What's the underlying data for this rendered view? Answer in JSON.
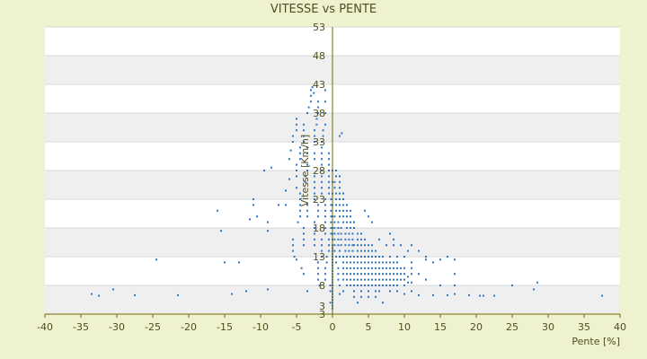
{
  "chart_data": {
    "type": "scatter",
    "title": "VITESSE vs PENTE",
    "xlabel": "Pente [%]",
    "ylabel": "Vitesse [Km/h]",
    "xlim": [
      -40,
      40
    ],
    "ylim": [
      3,
      53
    ],
    "x_ticks": [
      "-40",
      "-35",
      "-30",
      "-25",
      "-20",
      "-15",
      "-10",
      "-5",
      "0",
      "5",
      "10",
      "15",
      "20",
      "25",
      "30",
      "35",
      "40"
    ],
    "y_ticks": [
      "3",
      "3",
      "8",
      "13",
      "18",
      "23",
      "28",
      "33",
      "38",
      "43",
      "48",
      "53"
    ],
    "grid": true,
    "legend": "none",
    "colors": {
      "point": "#2e75c4",
      "axis": "#6b6b00",
      "band_dark": "#efefef",
      "band_light": "#ffffff",
      "background": "#eef2cf"
    },
    "points": [
      [
        -33.5,
        6.5
      ],
      [
        -32.5,
        6.2
      ],
      [
        -30.5,
        7.3
      ],
      [
        -27.5,
        6.3
      ],
      [
        -24.5,
        12.5
      ],
      [
        -21.5,
        6.3
      ],
      [
        -16,
        21
      ],
      [
        -15.5,
        17.5
      ],
      [
        -15,
        12
      ],
      [
        -14,
        6.5
      ],
      [
        -13,
        12
      ],
      [
        -12,
        7
      ],
      [
        -11.5,
        19.5
      ],
      [
        -11,
        22
      ],
      [
        -11,
        23
      ],
      [
        -10.5,
        20
      ],
      [
        -9.5,
        28
      ],
      [
        -9,
        7.3
      ],
      [
        -9,
        19
      ],
      [
        -9,
        17.5
      ],
      [
        -8.5,
        28.5
      ],
      [
        -7.5,
        22
      ],
      [
        -6.5,
        22
      ],
      [
        -6.5,
        24.5
      ],
      [
        -6,
        30
      ],
      [
        -6,
        26.5
      ],
      [
        -5.8,
        31.5
      ],
      [
        -5.5,
        33
      ],
      [
        -5.5,
        34
      ],
      [
        -5.5,
        14
      ],
      [
        -5.5,
        15
      ],
      [
        -5.5,
        16
      ],
      [
        -5.3,
        13
      ],
      [
        -5,
        12.5
      ],
      [
        -5,
        35
      ],
      [
        -5,
        36
      ],
      [
        -5,
        37
      ],
      [
        -5,
        25
      ],
      [
        -5,
        27
      ],
      [
        -5,
        28
      ],
      [
        -5,
        29
      ],
      [
        -4.8,
        19
      ],
      [
        -4.5,
        20
      ],
      [
        -4.5,
        21
      ],
      [
        -4.5,
        22
      ],
      [
        -4.5,
        23
      ],
      [
        -4.5,
        24
      ],
      [
        -4.5,
        30
      ],
      [
        -4.5,
        31
      ],
      [
        -4.5,
        32
      ],
      [
        -4.3,
        11
      ],
      [
        -4,
        10
      ],
      [
        -4,
        15
      ],
      [
        -4,
        16
      ],
      [
        -4,
        17
      ],
      [
        -4,
        18
      ],
      [
        -4,
        33
      ],
      [
        -4,
        34
      ],
      [
        -4,
        35
      ],
      [
        -4,
        36
      ],
      [
        -3.8,
        26
      ],
      [
        -3.8,
        27
      ],
      [
        -3.5,
        7
      ],
      [
        -3.5,
        20
      ],
      [
        -3.5,
        21
      ],
      [
        -3.5,
        22
      ],
      [
        -3.5,
        28
      ],
      [
        -3.5,
        29
      ],
      [
        -3.5,
        31
      ],
      [
        -3.5,
        32
      ],
      [
        -3.5,
        38
      ],
      [
        -3.3,
        39
      ],
      [
        -3,
        40
      ],
      [
        -3,
        41
      ],
      [
        -3,
        42
      ],
      [
        -2.8,
        42.5
      ],
      [
        -2.6,
        41.5
      ],
      [
        -2.5,
        15
      ],
      [
        -2.5,
        16
      ],
      [
        -2.5,
        17
      ],
      [
        -2.5,
        18
      ],
      [
        -2.5,
        19
      ],
      [
        -2.5,
        23
      ],
      [
        -2.5,
        24
      ],
      [
        -2.5,
        25
      ],
      [
        -2.5,
        26
      ],
      [
        -2.5,
        27
      ],
      [
        -2.5,
        30
      ],
      [
        -2.5,
        31
      ],
      [
        -2.5,
        33
      ],
      [
        -2.5,
        34
      ],
      [
        -2.5,
        35
      ],
      [
        -2.2,
        36
      ],
      [
        -2.2,
        37
      ],
      [
        -2,
        9
      ],
      [
        -2,
        10
      ],
      [
        -2,
        11
      ],
      [
        -2,
        12
      ],
      [
        -2,
        20
      ],
      [
        -2,
        21
      ],
      [
        -2,
        22
      ],
      [
        -2,
        38
      ],
      [
        -2,
        39
      ],
      [
        -2,
        40
      ],
      [
        -1.8,
        8
      ],
      [
        -1.5,
        13
      ],
      [
        -1.5,
        14
      ],
      [
        -1.5,
        15
      ],
      [
        -1.5,
        16
      ],
      [
        -1.5,
        24
      ],
      [
        -1.5,
        25
      ],
      [
        -1.5,
        26
      ],
      [
        -1.5,
        27
      ],
      [
        -1.5,
        28
      ],
      [
        -1.5,
        29
      ],
      [
        -1.5,
        30
      ],
      [
        -1.5,
        31
      ],
      [
        -1.5,
        32
      ],
      [
        -1.5,
        33
      ],
      [
        -1.3,
        34
      ],
      [
        -1.3,
        35
      ],
      [
        -1,
        9
      ],
      [
        -1,
        10
      ],
      [
        -1,
        11
      ],
      [
        -1,
        17
      ],
      [
        -1,
        18
      ],
      [
        -1,
        19
      ],
      [
        -1,
        20
      ],
      [
        -1,
        21
      ],
      [
        -1,
        22
      ],
      [
        -1,
        23
      ],
      [
        -1,
        36
      ],
      [
        -1,
        38
      ],
      [
        -1,
        40
      ],
      [
        -1,
        42
      ],
      [
        -0.8,
        12
      ],
      [
        -0.8,
        13
      ],
      [
        -0.5,
        14
      ],
      [
        -0.5,
        15
      ],
      [
        -0.5,
        16
      ],
      [
        -0.5,
        24
      ],
      [
        -0.5,
        25
      ],
      [
        -0.5,
        26
      ],
      [
        -0.5,
        27
      ],
      [
        -0.5,
        28
      ],
      [
        -0.5,
        29
      ],
      [
        -0.5,
        30
      ],
      [
        -0.5,
        31
      ],
      [
        -0.3,
        5
      ],
      [
        -0.3,
        7
      ],
      [
        -0.3,
        8
      ],
      [
        -0.2,
        17
      ],
      [
        -0.2,
        18
      ],
      [
        -0.2,
        19
      ],
      [
        -0.2,
        20
      ],
      [
        -0.2,
        21
      ],
      [
        -0.2,
        22
      ],
      [
        -0.2,
        23
      ],
      [
        0,
        4
      ],
      [
        0,
        4.5
      ],
      [
        0,
        5
      ],
      [
        0,
        5.5
      ],
      [
        0,
        6
      ],
      [
        0,
        6.5
      ],
      [
        0,
        7
      ],
      [
        0,
        7.5
      ],
      [
        0,
        8
      ],
      [
        0,
        8.5
      ],
      [
        0,
        9
      ],
      [
        0,
        9.5
      ],
      [
        0,
        10
      ],
      [
        0,
        10.5
      ],
      [
        0,
        11
      ],
      [
        0,
        11.5
      ],
      [
        0,
        12
      ],
      [
        0,
        12.5
      ],
      [
        0,
        13
      ],
      [
        0,
        13.5
      ],
      [
        0,
        14
      ],
      [
        0,
        14.5
      ],
      [
        0,
        15
      ],
      [
        0,
        16
      ],
      [
        0,
        17
      ],
      [
        0,
        18
      ],
      [
        0,
        20
      ],
      [
        0,
        22
      ],
      [
        0,
        24
      ],
      [
        0,
        26
      ],
      [
        0,
        28
      ],
      [
        0.3,
        14
      ],
      [
        0.3,
        15
      ],
      [
        0.3,
        16
      ],
      [
        0.3,
        17
      ],
      [
        0.3,
        18
      ],
      [
        0.3,
        19
      ],
      [
        0.3,
        20
      ],
      [
        0.3,
        25
      ],
      [
        0.3,
        26
      ],
      [
        0.5,
        12
      ],
      [
        0.5,
        13
      ],
      [
        0.5,
        21
      ],
      [
        0.5,
        22
      ],
      [
        0.5,
        23
      ],
      [
        0.5,
        24
      ],
      [
        0.5,
        27
      ],
      [
        0.5,
        28
      ],
      [
        0.8,
        9
      ],
      [
        0.8,
        10
      ],
      [
        0.8,
        11
      ],
      [
        0.8,
        15
      ],
      [
        0.8,
        16
      ],
      [
        0.8,
        17
      ],
      [
        0.8,
        18
      ],
      [
        0.8,
        19
      ],
      [
        1,
        6.5
      ],
      [
        1,
        8
      ],
      [
        1,
        13
      ],
      [
        1,
        14
      ],
      [
        1,
        20
      ],
      [
        1,
        21
      ],
      [
        1,
        22
      ],
      [
        1,
        23
      ],
      [
        1,
        24
      ],
      [
        1,
        25
      ],
      [
        1,
        26
      ],
      [
        1,
        27
      ],
      [
        1,
        34
      ],
      [
        1.2,
        15
      ],
      [
        1.2,
        16
      ],
      [
        1.2,
        17
      ],
      [
        1.2,
        18
      ],
      [
        1.3,
        34.5
      ],
      [
        1.5,
        7
      ],
      [
        1.5,
        9
      ],
      [
        1.5,
        10
      ],
      [
        1.5,
        11
      ],
      [
        1.5,
        12
      ],
      [
        1.5,
        13
      ],
      [
        1.5,
        19
      ],
      [
        1.5,
        20
      ],
      [
        1.5,
        21
      ],
      [
        1.5,
        22
      ],
      [
        1.5,
        23
      ],
      [
        1.5,
        24
      ],
      [
        1.8,
        14
      ],
      [
        1.8,
        15
      ],
      [
        1.8,
        16
      ],
      [
        1.8,
        17
      ],
      [
        2,
        8
      ],
      [
        2,
        9
      ],
      [
        2,
        10
      ],
      [
        2,
        11
      ],
      [
        2,
        12
      ],
      [
        2,
        13
      ],
      [
        2,
        18
      ],
      [
        2,
        19
      ],
      [
        2,
        20
      ],
      [
        2,
        21
      ],
      [
        2,
        22
      ],
      [
        2.3,
        14
      ],
      [
        2.3,
        15
      ],
      [
        2.3,
        16
      ],
      [
        2.3,
        17
      ],
      [
        2.5,
        8
      ],
      [
        2.5,
        9
      ],
      [
        2.5,
        10
      ],
      [
        2.5,
        11
      ],
      [
        2.5,
        12
      ],
      [
        2.5,
        13
      ],
      [
        2.5,
        18
      ],
      [
        2.5,
        19
      ],
      [
        2.5,
        20
      ],
      [
        2.5,
        21
      ],
      [
        2.8,
        14
      ],
      [
        2.8,
        15
      ],
      [
        2.8,
        16
      ],
      [
        2.8,
        17
      ],
      [
        3,
        6
      ],
      [
        3,
        7
      ],
      [
        3,
        8
      ],
      [
        3,
        9
      ],
      [
        3,
        10
      ],
      [
        3,
        11
      ],
      [
        3,
        12
      ],
      [
        3,
        13
      ],
      [
        3,
        15
      ],
      [
        3,
        18
      ],
      [
        3,
        19
      ],
      [
        3.5,
        8
      ],
      [
        3.5,
        9
      ],
      [
        3.5,
        10
      ],
      [
        3.5,
        11
      ],
      [
        3.5,
        12
      ],
      [
        3.5,
        13
      ],
      [
        3.5,
        14
      ],
      [
        3.5,
        15
      ],
      [
        3.5,
        16
      ],
      [
        3.5,
        17
      ],
      [
        3.5,
        5
      ],
      [
        4,
        6
      ],
      [
        4,
        7
      ],
      [
        4,
        8
      ],
      [
        4,
        9
      ],
      [
        4,
        10
      ],
      [
        4,
        11
      ],
      [
        4,
        12
      ],
      [
        4,
        13
      ],
      [
        4,
        14
      ],
      [
        4,
        15
      ],
      [
        4,
        16
      ],
      [
        4,
        17
      ],
      [
        4.5,
        8
      ],
      [
        4.5,
        9
      ],
      [
        4.5,
        10
      ],
      [
        4.5,
        11
      ],
      [
        4.5,
        12
      ],
      [
        4.5,
        13
      ],
      [
        4.5,
        14
      ],
      [
        4.5,
        15
      ],
      [
        4.5,
        16
      ],
      [
        4.5,
        21
      ],
      [
        5,
        6
      ],
      [
        5,
        7
      ],
      [
        5,
        8
      ],
      [
        5,
        9
      ],
      [
        5,
        10
      ],
      [
        5,
        11
      ],
      [
        5,
        12
      ],
      [
        5,
        13
      ],
      [
        5,
        14
      ],
      [
        5,
        15
      ],
      [
        5,
        20
      ],
      [
        5.5,
        8
      ],
      [
        5.5,
        9
      ],
      [
        5.5,
        10
      ],
      [
        5.5,
        11
      ],
      [
        5.5,
        12
      ],
      [
        5.5,
        13
      ],
      [
        5.5,
        14
      ],
      [
        5.5,
        15
      ],
      [
        5.5,
        19
      ],
      [
        6,
        6
      ],
      [
        6,
        7
      ],
      [
        6,
        8
      ],
      [
        6,
        9
      ],
      [
        6,
        10
      ],
      [
        6,
        11
      ],
      [
        6,
        12
      ],
      [
        6,
        13
      ],
      [
        6,
        14
      ],
      [
        6.5,
        7
      ],
      [
        6.5,
        8
      ],
      [
        6.5,
        9
      ],
      [
        6.5,
        10
      ],
      [
        6.5,
        11
      ],
      [
        6.5,
        12
      ],
      [
        6.5,
        13
      ],
      [
        6.5,
        16
      ],
      [
        7,
        5
      ],
      [
        7,
        8
      ],
      [
        7,
        9
      ],
      [
        7,
        10
      ],
      [
        7,
        11
      ],
      [
        7,
        12
      ],
      [
        7,
        13
      ],
      [
        7.5,
        8
      ],
      [
        7.5,
        9
      ],
      [
        7.5,
        10
      ],
      [
        7.5,
        11
      ],
      [
        7.5,
        12
      ],
      [
        7.5,
        15
      ],
      [
        8,
        7
      ],
      [
        8,
        8
      ],
      [
        8,
        9
      ],
      [
        8,
        10
      ],
      [
        8,
        11
      ],
      [
        8,
        12
      ],
      [
        8,
        13
      ],
      [
        8,
        17
      ],
      [
        8.5,
        8
      ],
      [
        8.5,
        9
      ],
      [
        8.5,
        10
      ],
      [
        8.5,
        11
      ],
      [
        8.5,
        12
      ],
      [
        8.5,
        15
      ],
      [
        8.5,
        16
      ],
      [
        9,
        7
      ],
      [
        9,
        8
      ],
      [
        9,
        9
      ],
      [
        9,
        10
      ],
      [
        9,
        11
      ],
      [
        9,
        12
      ],
      [
        9,
        13
      ],
      [
        9.5,
        9
      ],
      [
        9.5,
        10
      ],
      [
        9.5,
        11
      ],
      [
        9.5,
        15
      ],
      [
        10,
        6.5
      ],
      [
        10,
        8
      ],
      [
        10,
        9
      ],
      [
        10,
        10
      ],
      [
        10,
        11
      ],
      [
        10,
        13
      ],
      [
        10.5,
        8.5
      ],
      [
        10.5,
        9.5
      ],
      [
        10.5,
        14
      ],
      [
        11,
        7
      ],
      [
        11,
        8.5
      ],
      [
        11,
        10
      ],
      [
        11,
        11
      ],
      [
        11,
        12
      ],
      [
        11,
        15
      ],
      [
        12,
        6.3
      ],
      [
        12,
        10
      ],
      [
        12,
        14
      ],
      [
        13,
        9
      ],
      [
        13,
        13
      ],
      [
        13,
        12.5
      ],
      [
        14,
        6.3
      ],
      [
        14,
        12
      ],
      [
        15,
        12.5
      ],
      [
        15,
        8
      ],
      [
        16,
        13
      ],
      [
        16,
        6.3
      ],
      [
        17,
        12.5
      ],
      [
        17,
        6.5
      ],
      [
        17,
        8
      ],
      [
        17,
        10
      ],
      [
        19,
        6.3
      ],
      [
        20.5,
        6.2
      ],
      [
        21,
        6.2
      ],
      [
        22.5,
        6.2
      ],
      [
        25,
        8
      ],
      [
        28,
        7.3
      ],
      [
        28.5,
        8.5
      ],
      [
        37.5,
        6.2
      ]
    ]
  }
}
